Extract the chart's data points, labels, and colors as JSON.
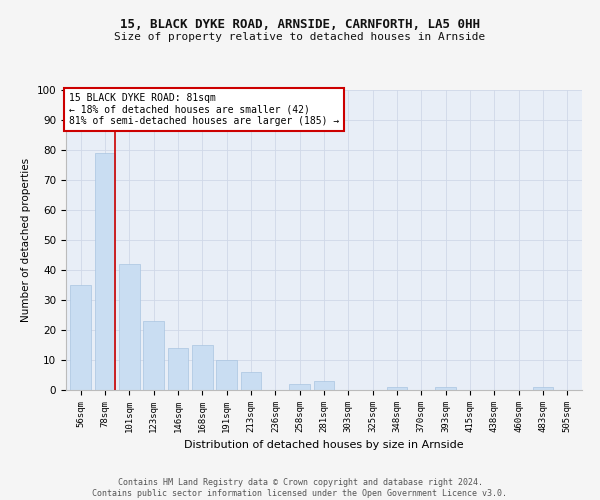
{
  "title1": "15, BLACK DYKE ROAD, ARNSIDE, CARNFORTH, LA5 0HH",
  "title2": "Size of property relative to detached houses in Arnside",
  "xlabel": "Distribution of detached houses by size in Arnside",
  "ylabel": "Number of detached properties",
  "categories": [
    "56sqm",
    "78sqm",
    "101sqm",
    "123sqm",
    "146sqm",
    "168sqm",
    "191sqm",
    "213sqm",
    "236sqm",
    "258sqm",
    "281sqm",
    "303sqm",
    "325sqm",
    "348sqm",
    "370sqm",
    "393sqm",
    "415sqm",
    "438sqm",
    "460sqm",
    "483sqm",
    "505sqm"
  ],
  "values": [
    35,
    79,
    42,
    23,
    14,
    15,
    10,
    6,
    0,
    2,
    3,
    0,
    0,
    1,
    0,
    1,
    0,
    0,
    0,
    1,
    0
  ],
  "bar_color": "#c9ddf2",
  "bar_edge_color": "#aac4e0",
  "vline_x": 1.42,
  "vline_color": "#cc0000",
  "annotation_text": "15 BLACK DYKE ROAD: 81sqm\n← 18% of detached houses are smaller (42)\n81% of semi-detached houses are larger (185) →",
  "annotation_box_color": "#ffffff",
  "annotation_box_edge": "#cc0000",
  "ylim": [
    0,
    100
  ],
  "yticks": [
    0,
    10,
    20,
    30,
    40,
    50,
    60,
    70,
    80,
    90,
    100
  ],
  "grid_color": "#d0d8e8",
  "footnote": "Contains HM Land Registry data © Crown copyright and database right 2024.\nContains public sector information licensed under the Open Government Licence v3.0.",
  "bg_color": "#e8eef7",
  "fig_bg_color": "#f5f5f5"
}
